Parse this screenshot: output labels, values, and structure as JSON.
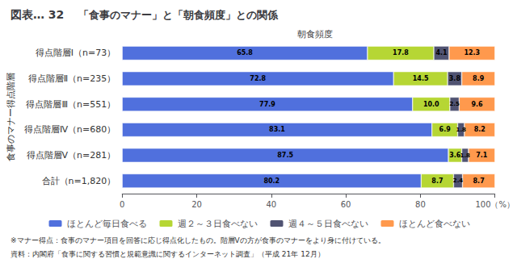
{
  "chart_data": {
    "type": "bar",
    "orientation": "horizontal",
    "stacked": true,
    "data_labels": true,
    "grid": false,
    "legend": "bottom",
    "title": "図表… 32",
    "subtitle": "「食事のマナー」と「朝食頻度」との関係",
    "x_label": "朝食頻度",
    "y_label": "食事のマナー得点階層",
    "annotations": [
      "※マナー得点：食事のマナー項目を回答に応じ得点化したもの。階層Vの方が食事のマナーをより身に付けている。",
      "資料：内閣府「食事に関する習慣と規範意識に関するインターネット調査」（平成 21年 12月）"
    ],
    "categories": [
      "得点階層Ⅰ（n=73）",
      "得点階層Ⅱ（n=235）",
      "得点階層Ⅲ（n=551）",
      "得点階層Ⅳ（n=680）",
      "得点階層Ⅴ（n=281）",
      "合計（n=1,820）"
    ],
    "series": [
      {
        "name": "ほとんど毎日食べる",
        "values": [
          65.8,
          72.8,
          77.9,
          83.1,
          87.5,
          80.2
        ]
      },
      {
        "name": "週２～３日食べない",
        "values": [
          17.8,
          14.5,
          10.0,
          6.9,
          3.6,
          8.7
        ],
        "value_labels": [
          "17.8",
          "14.5",
          "10.0",
          "6.9",
          "3.6",
          "8.7"
        ]
      },
      {
        "name": "週４～５日食べない",
        "values": [
          4.1,
          3.8,
          2.5,
          1.8,
          1.8,
          2.4
        ]
      },
      {
        "name": "ほとんど食べない",
        "values": [
          12.3,
          8.9,
          9.6,
          8.2,
          7.1,
          8.7
        ]
      }
    ],
    "xlim": [
      0,
      100
    ],
    "xticks": [
      0,
      20,
      40,
      60,
      80,
      {
        "value": 100,
        "label": "100（%）"
      }
    ]
  }
}
